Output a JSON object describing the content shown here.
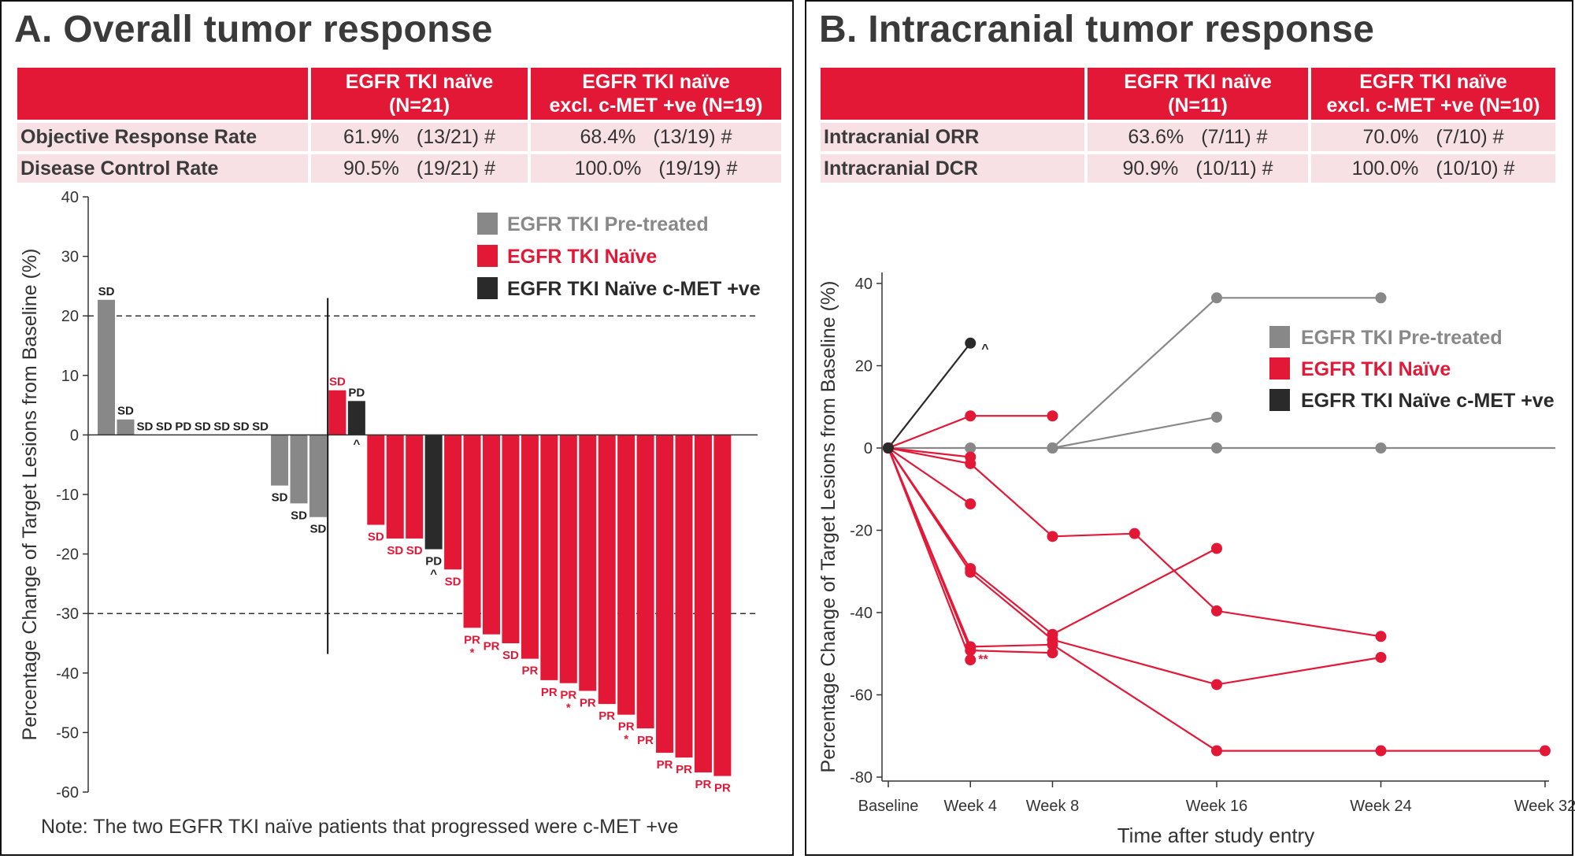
{
  "panels": {
    "a": {
      "title": "A. Overall tumor response",
      "table": {
        "header": [
          "",
          "EGFR TKI naïve",
          "(N=21)",
          "EGFR TKI naïve",
          "excl. c-MET +ve (N=19)"
        ],
        "rows": [
          {
            "label": "Objective Response Rate",
            "v1": "61.9%",
            "n1": "(13/21) #",
            "v2": "68.4%",
            "n2": "(13/19) #"
          },
          {
            "label": "Disease Control Rate",
            "v1": "90.5%",
            "n1": "(19/21) #",
            "v2": "100.0%",
            "n2": "(19/19) #"
          }
        ]
      },
      "note": "Note:  The two EGFR TKI naïve patients that progressed were c-MET +ve"
    },
    "b": {
      "title": "B. Intracranial tumor response",
      "table": {
        "header": [
          "",
          "EGFR TKI naïve",
          "(N=11)",
          "EGFR TKI naïve",
          "excl. c-MET +ve (N=10)"
        ],
        "rows": [
          {
            "label": "Intracranial ORR",
            "v1": "63.6%",
            "n1": "(7/11) #",
            "v2": "70.0%",
            "n2": "(7/10) #"
          },
          {
            "label": "Intracranial DCR",
            "v1": "90.9%",
            "n1": "(10/11) #",
            "v2": "100.0%",
            "n2": "(10/10) #"
          }
        ]
      }
    }
  },
  "chart_data": [
    {
      "type": "bar",
      "title": "A. Overall tumor response",
      "ylabel": "Percentage Change of Target Lesions from Baseline (%)",
      "ylim": [
        -60,
        40
      ],
      "yticks": [
        40,
        30,
        20,
        10,
        0,
        -10,
        -20,
        -30,
        -40,
        -50,
        -60
      ],
      "ref_lines": [
        20,
        -30
      ],
      "legend": [
        {
          "label": "EGFR TKI Pre-treated",
          "color": "#888888"
        },
        {
          "label": "EGFR TKI Naïve",
          "color": "#e31837"
        },
        {
          "label": "EGFR TKI Naïve c-MET +ve",
          "color": "#2a2a2a"
        }
      ],
      "bars": [
        {
          "value": 22.7,
          "label": "SD",
          "group": "pretreated"
        },
        {
          "value": 2.6,
          "label": "SD",
          "group": "pretreated"
        },
        {
          "value": 0,
          "label": "SD",
          "group": "pretreated"
        },
        {
          "value": 0,
          "label": "SD",
          "group": "pretreated"
        },
        {
          "value": 0,
          "label": "PD",
          "group": "pretreated"
        },
        {
          "value": 0,
          "label": "SD",
          "group": "pretreated"
        },
        {
          "value": 0,
          "label": "SD",
          "group": "pretreated"
        },
        {
          "value": 0,
          "label": "SD",
          "group": "pretreated"
        },
        {
          "value": 0,
          "label": "SD",
          "group": "pretreated"
        },
        {
          "value": -8.5,
          "label": "SD",
          "group": "pretreated"
        },
        {
          "value": -11.5,
          "label": "SD",
          "group": "pretreated"
        },
        {
          "value": -13.8,
          "label": "SD",
          "group": "pretreated"
        },
        {
          "value": 7.5,
          "label": "SD",
          "group": "naive"
        },
        {
          "value": 5.7,
          "label": "PD",
          "group": "cmet",
          "marker": "^"
        },
        {
          "value": -15.1,
          "label": "SD",
          "group": "naive"
        },
        {
          "value": -17.4,
          "label": "SD",
          "group": "naive"
        },
        {
          "value": -17.4,
          "label": "SD",
          "group": "naive"
        },
        {
          "value": -19.2,
          "label": "PD",
          "group": "cmet",
          "marker": "^"
        },
        {
          "value": -22.6,
          "label": "SD",
          "group": "naive"
        },
        {
          "value": -32.4,
          "label": "PR",
          "group": "naive",
          "marker": "*"
        },
        {
          "value": -33.5,
          "label": "PR",
          "group": "naive"
        },
        {
          "value": -35.0,
          "label": "SD",
          "group": "naive"
        },
        {
          "value": -37.6,
          "label": "PR",
          "group": "naive"
        },
        {
          "value": -41.2,
          "label": "PR",
          "group": "naive"
        },
        {
          "value": -41.7,
          "label": "PR",
          "group": "naive",
          "marker": "*"
        },
        {
          "value": -43.0,
          "label": "PR",
          "group": "naive"
        },
        {
          "value": -45.2,
          "label": "PR",
          "group": "naive"
        },
        {
          "value": -47.0,
          "label": "PR",
          "group": "naive",
          "marker": "*"
        },
        {
          "value": -49.3,
          "label": "PR",
          "group": "naive"
        },
        {
          "value": -53.4,
          "label": "PR",
          "group": "naive"
        },
        {
          "value": -54.2,
          "label": "PR",
          "group": "naive"
        },
        {
          "value": -56.7,
          "label": "PR",
          "group": "naive"
        },
        {
          "value": -57.3,
          "label": "PR",
          "group": "naive"
        }
      ]
    },
    {
      "type": "line",
      "title": "B. Intracranial tumor response",
      "xlabel": "Time after study entry",
      "ylabel": "Percentage Change of Target Lesions from Baseline (%)",
      "xlim": [
        0,
        32
      ],
      "ylim": [
        -80,
        40
      ],
      "xticks": [
        {
          "x": 0,
          "label": "Baseline"
        },
        {
          "x": 4,
          "label": "Week 4"
        },
        {
          "x": 8,
          "label": "Week 8"
        },
        {
          "x": 16,
          "label": "Week 16"
        },
        {
          "x": 24,
          "label": "Week 24"
        },
        {
          "x": 32,
          "label": "Week 32"
        }
      ],
      "yticks": [
        40,
        20,
        0,
        -20,
        -40,
        -60,
        -80
      ],
      "legend": [
        {
          "label": "EGFR TKI Pre-treated",
          "color": "#888888"
        },
        {
          "label": "EGFR TKI Naïve",
          "color": "#e31837"
        },
        {
          "label": "EGFR TKI Naïve c-MET +ve",
          "color": "#2a2a2a"
        }
      ],
      "series": [
        {
          "group": "pretreated",
          "points": [
            [
              0,
              0
            ],
            [
              4,
              0
            ],
            [
              8,
              0
            ],
            [
              16,
              36.5
            ],
            [
              24,
              36.5
            ]
          ]
        },
        {
          "group": "pretreated",
          "points": [
            [
              8,
              0
            ],
            [
              16,
              7.5
            ]
          ]
        },
        {
          "group": "pretreated",
          "points": [
            [
              8,
              0
            ],
            [
              16,
              0
            ],
            [
              24,
              0
            ]
          ]
        },
        {
          "group": "pretreated",
          "points": [
            [
              24,
              0
            ],
            [
              32.5,
              0
            ]
          ],
          "markers": false
        },
        {
          "group": "cmet",
          "points": [
            [
              0,
              0
            ],
            [
              4,
              25.5
            ]
          ],
          "annotation": "^"
        },
        {
          "group": "naive",
          "points": [
            [
              0,
              0
            ],
            [
              4,
              7.8
            ],
            [
              8,
              7.8
            ]
          ]
        },
        {
          "group": "naive",
          "points": [
            [
              0,
              0
            ],
            [
              4,
              -2.2
            ]
          ]
        },
        {
          "group": "naive",
          "points": [
            [
              0,
              0
            ],
            [
              4,
              -3.8
            ],
            [
              8,
              -21.5
            ],
            [
              12,
              -20.8
            ],
            [
              16,
              -39.6
            ],
            [
              24,
              -45.8
            ]
          ]
        },
        {
          "group": "naive",
          "points": [
            [
              0,
              0
            ],
            [
              4,
              -13.6
            ]
          ]
        },
        {
          "group": "naive",
          "points": [
            [
              0,
              0
            ],
            [
              4,
              -29.3
            ],
            [
              8,
              -45.3
            ],
            [
              16,
              -24.4
            ]
          ]
        },
        {
          "group": "naive",
          "points": [
            [
              0,
              0
            ],
            [
              4,
              -30.2
            ],
            [
              8,
              -46.6
            ],
            [
              16,
              -57.5
            ],
            [
              24,
              -50.9
            ]
          ]
        },
        {
          "group": "naive",
          "points": [
            [
              0,
              0
            ],
            [
              4,
              -48.3
            ],
            [
              8,
              -47.8
            ],
            [
              16,
              -73.6
            ],
            [
              24,
              -73.6
            ],
            [
              32,
              -73.6
            ]
          ]
        },
        {
          "group": "naive",
          "points": [
            [
              0,
              0
            ],
            [
              4,
              -49.2
            ],
            [
              8,
              -49.8
            ]
          ]
        },
        {
          "group": "naive",
          "points": [
            [
              0,
              0
            ],
            [
              4,
              -51.5
            ]
          ]
        }
      ],
      "annotations": [
        {
          "x": 4,
          "y": -50,
          "text": "**"
        }
      ]
    }
  ]
}
